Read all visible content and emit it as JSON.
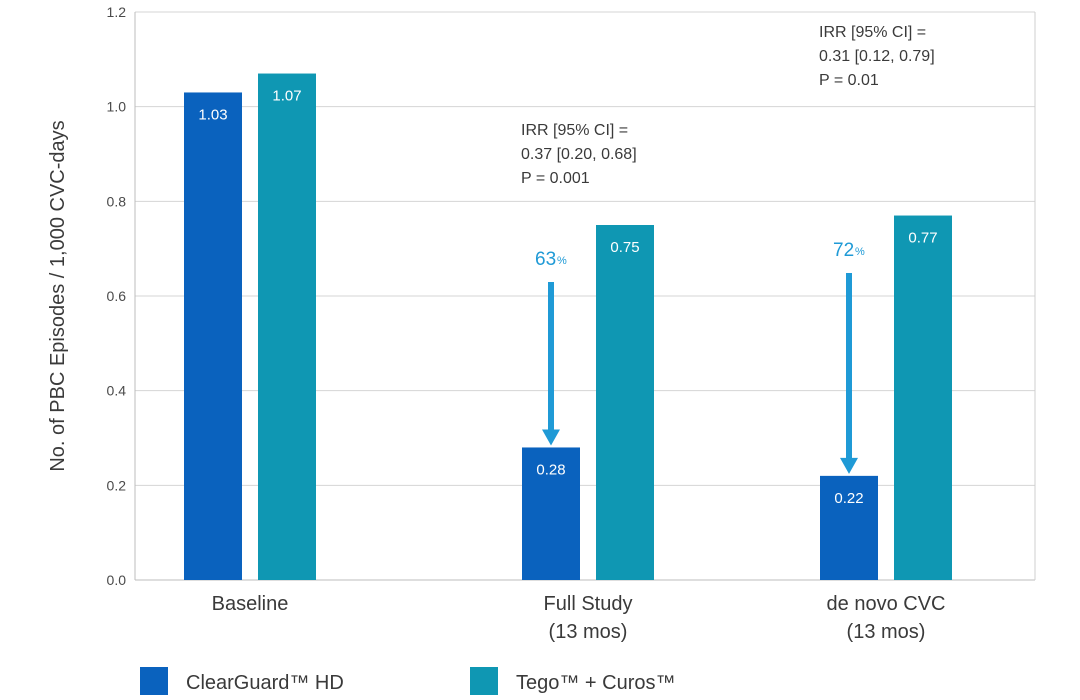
{
  "chart_data": {
    "type": "bar",
    "ylabel": "No. of PBC Episodes / 1,000 CVC-days",
    "xlabel": "",
    "ylim": [
      0,
      1.2
    ],
    "yticks": [
      "0.0",
      "0.2",
      "0.4",
      "0.6",
      "0.8",
      "1.0",
      "1.2"
    ],
    "grid": true,
    "categories": [
      [
        "Baseline"
      ],
      [
        "Full Study",
        "(13 mos)"
      ],
      [
        "de novo CVC",
        "(13 mos)"
      ]
    ],
    "series": [
      {
        "name": "ClearGuard™ HD",
        "color": "#0a62be",
        "values": [
          1.03,
          0.28,
          0.22
        ],
        "labels": [
          "1.03",
          "0.28",
          "0.22"
        ]
      },
      {
        "name": "Tego™ + Curos™",
        "color": "#0f97b3",
        "values": [
          1.07,
          0.75,
          0.77
        ],
        "labels": [
          "1.07",
          "0.75",
          "0.77"
        ]
      }
    ],
    "annotations": [
      {
        "category_index": 1,
        "lines": [
          "IRR [95% CI] =",
          "0.37 [0.20, 0.68]",
          "P = 0.001"
        ],
        "reduction_value": "63",
        "reduction_unit": "%"
      },
      {
        "category_index": 2,
        "lines": [
          "IRR [95% CI] =",
          "0.31 [0.12, 0.79]",
          "P = 0.01"
        ],
        "reduction_value": "72",
        "reduction_unit": "%"
      }
    ],
    "arrow_color": "#1f9ad6",
    "legend_position": "bottom-left"
  }
}
